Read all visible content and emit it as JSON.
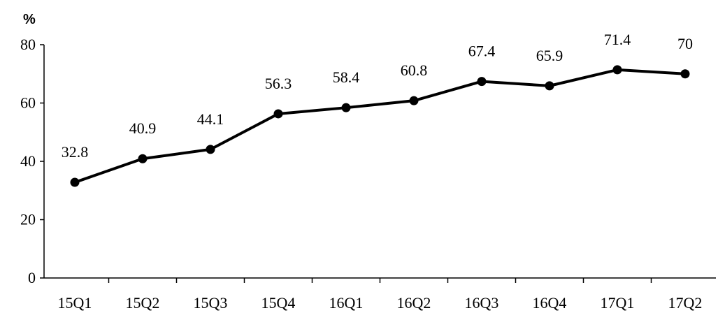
{
  "chart_data": {
    "type": "line",
    "title": "",
    "xlabel": "",
    "ylabel": "%",
    "categories": [
      "15Q1",
      "15Q2",
      "15Q3",
      "15Q4",
      "16Q1",
      "16Q2",
      "16Q3",
      "16Q4",
      "17Q1",
      "17Q2"
    ],
    "series": [
      {
        "values": [
          32.8,
          40.9,
          44.1,
          56.3,
          58.4,
          60.8,
          67.4,
          65.9,
          71.4,
          70
        ],
        "data_labels": [
          "32.8",
          "40.9",
          "44.1",
          "56.3",
          "58.4",
          "60.8",
          "67.4",
          "65.9",
          "71.4",
          "70"
        ],
        "color": "#000000"
      }
    ],
    "ylim": [
      0,
      80
    ],
    "yticks": [
      0,
      20,
      40,
      60,
      80
    ],
    "grid": false,
    "legend": "none",
    "marker": "circle"
  }
}
